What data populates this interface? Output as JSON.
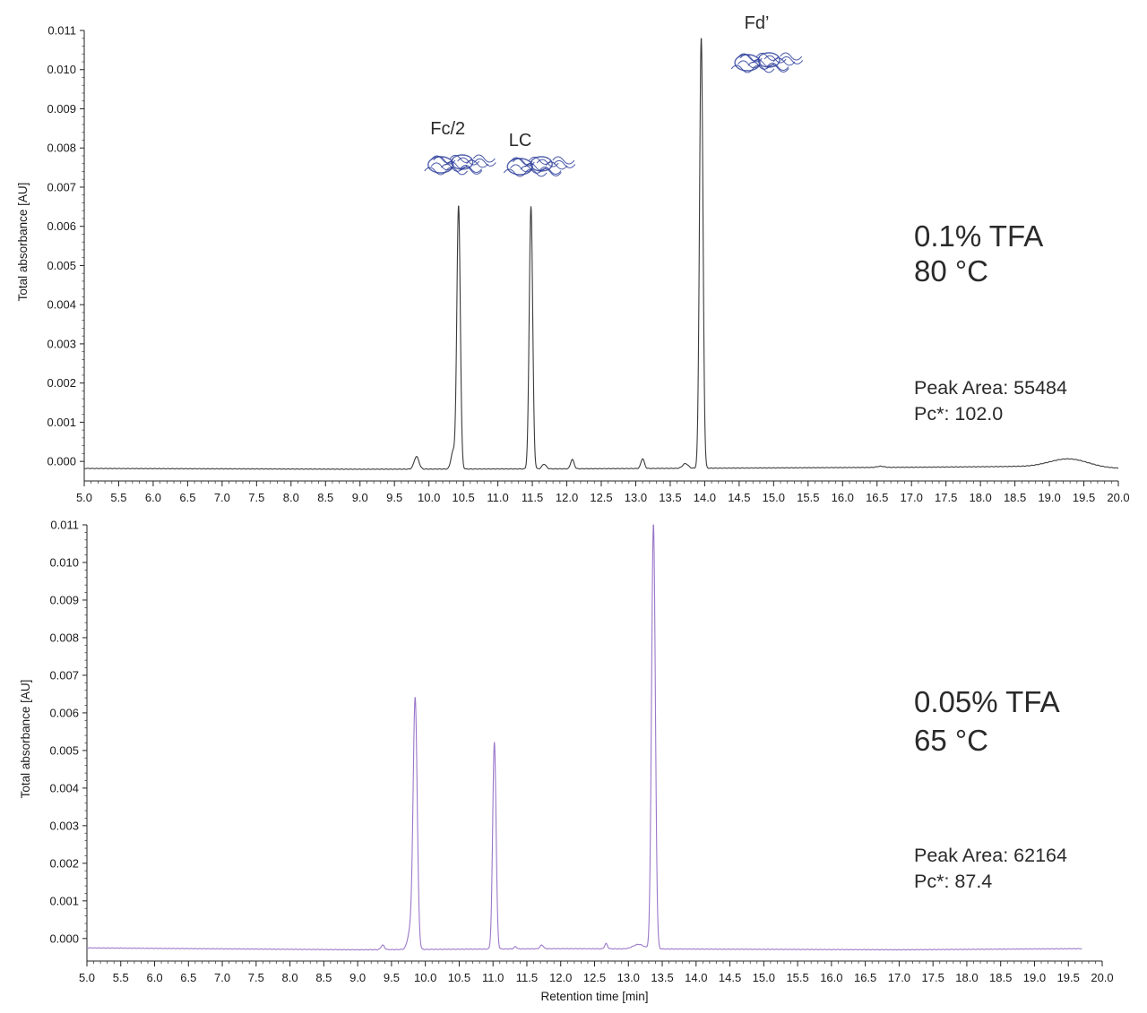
{
  "chart_data": [
    {
      "type": "line",
      "xlabel": "",
      "ylabel": "Total absorbance [AU]",
      "xlim": [
        5.0,
        20.0
      ],
      "ylim": [
        -0.0005,
        0.011
      ],
      "x_ticks": [
        "5.0",
        "5.5",
        "6.0",
        "6.5",
        "7.0",
        "7.5",
        "8.0",
        "8.5",
        "9.0",
        "9.5",
        "10.0",
        "10.5",
        "11.0",
        "11.5",
        "12.0",
        "12.5",
        "13.0",
        "13.5",
        "14.0",
        "14.5",
        "15.0",
        "15.5",
        "16.0",
        "16.5",
        "17.0",
        "17.5",
        "18.0",
        "18.5",
        "19.0",
        "19.5",
        "20.0"
      ],
      "y_ticks": [
        "0.000",
        "0.001",
        "0.002",
        "0.003",
        "0.004",
        "0.005",
        "0.006",
        "0.007",
        "0.008",
        "0.009",
        "0.010",
        "0.011"
      ],
      "line_color": "#3a3a3a",
      "grid": false,
      "condition": [
        "0.1% TFA",
        "80 °C"
      ],
      "stats": [
        "Peak Area: 55484",
        "Pc*: 102.0"
      ],
      "baseline": [
        [
          5.0,
          -0.00018
        ],
        [
          9.0,
          -0.0002
        ],
        [
          12.0,
          -0.00019
        ],
        [
          17.0,
          -0.00015
        ],
        [
          18.5,
          -0.00013
        ],
        [
          20.0,
          -0.00018
        ]
      ],
      "peaks": [
        {
          "label": "",
          "rt": 9.82,
          "height": 0.00032,
          "width": 0.035
        },
        {
          "label": "",
          "rt": 10.35,
          "height": 0.00045,
          "width": 0.03
        },
        {
          "label": "Fc/2",
          "rt": 10.43,
          "height": 0.00672,
          "width": 0.025
        },
        {
          "label": "LC",
          "rt": 11.48,
          "height": 0.0067,
          "width": 0.025
        },
        {
          "label": "",
          "rt": 11.67,
          "height": 0.00012,
          "width": 0.03
        },
        {
          "label": "",
          "rt": 12.08,
          "height": 0.00024,
          "width": 0.025
        },
        {
          "label": "",
          "rt": 13.1,
          "height": 0.00025,
          "width": 0.025
        },
        {
          "label": "",
          "rt": 13.72,
          "height": 0.00012,
          "width": 0.04
        },
        {
          "label": "Fd’",
          "rt": 13.95,
          "height": 0.011,
          "width": 0.025
        },
        {
          "label": "",
          "rt": 16.55,
          "height": 3e-05,
          "width": 0.05
        },
        {
          "label": "",
          "rt": 19.28,
          "height": 0.00022,
          "width": 0.28
        }
      ]
    },
    {
      "type": "line",
      "xlabel": "Retention time [min]",
      "ylabel": "Total absorbance [AU]",
      "xlim": [
        5.0,
        20.0
      ],
      "ylim": [
        -0.0006,
        0.011
      ],
      "x_ticks": [
        "5.0",
        "5.5",
        "6.0",
        "6.5",
        "7.0",
        "7.5",
        "8.0",
        "8.5",
        "9.0",
        "9.5",
        "10.0",
        "10.5",
        "11.0",
        "11.5",
        "12.0",
        "12.5",
        "13.0",
        "13.5",
        "14.0",
        "14.5",
        "15.0",
        "15.5",
        "16.0",
        "16.5",
        "17.0",
        "17.5",
        "18.0",
        "18.5",
        "19.0",
        "19.5",
        "20.0"
      ],
      "y_ticks": [
        "0.000",
        "0.001",
        "0.002",
        "0.003",
        "0.004",
        "0.005",
        "0.006",
        "0.007",
        "0.008",
        "0.009",
        "0.010",
        "0.011"
      ],
      "line_color": "#9b77c9",
      "grid": false,
      "condition": [
        "0.05% TFA",
        "65 °C"
      ],
      "stats": [
        "Peak Area: 62164",
        "Pc*: 87.4"
      ],
      "baseline": [
        [
          5.0,
          -0.00025
        ],
        [
          9.0,
          -0.0003
        ],
        [
          12.0,
          -0.00027
        ],
        [
          17.0,
          -0.0003
        ],
        [
          19.7,
          -0.00027
        ]
      ],
      "peaks": [
        {
          "label": "",
          "rt": 9.37,
          "height": 0.00012,
          "width": 0.025
        },
        {
          "label": "",
          "rt": 9.78,
          "height": 0.0005,
          "width": 0.04
        },
        {
          "label": "",
          "rt": 9.85,
          "height": 0.0066,
          "width": 0.03
        },
        {
          "label": "",
          "rt": 11.02,
          "height": 0.0055,
          "width": 0.025
        },
        {
          "label": "",
          "rt": 11.33,
          "height": 6e-05,
          "width": 0.02
        },
        {
          "label": "",
          "rt": 11.72,
          "height": 0.0001,
          "width": 0.025
        },
        {
          "label": "",
          "rt": 12.67,
          "height": 0.00014,
          "width": 0.02
        },
        {
          "label": "",
          "rt": 13.15,
          "height": 0.00012,
          "width": 0.08
        },
        {
          "label": "",
          "rt": 13.37,
          "height": 0.0113,
          "width": 0.028
        }
      ]
    }
  ]
}
